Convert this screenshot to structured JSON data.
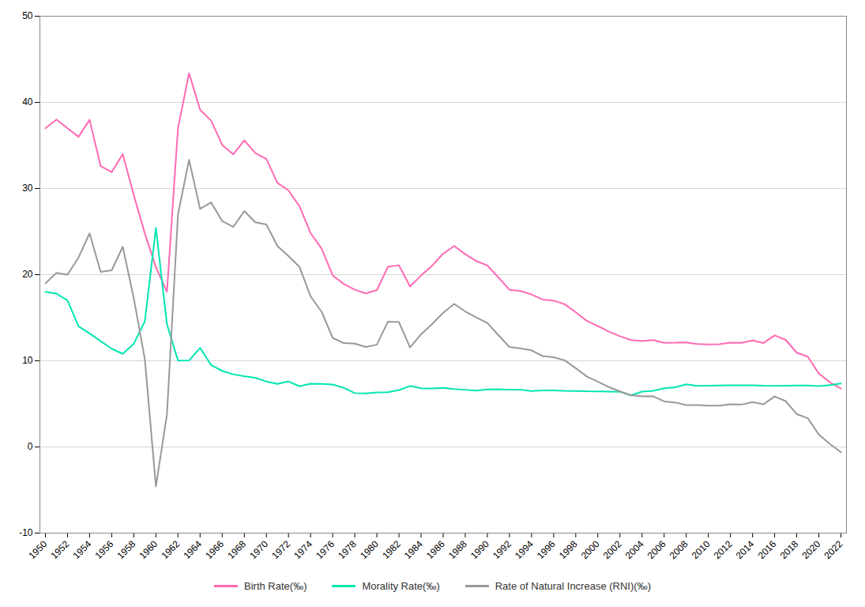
{
  "chart_data": {
    "type": "line",
    "x": [
      1950,
      1951,
      1952,
      1953,
      1954,
      1955,
      1956,
      1957,
      1958,
      1959,
      1960,
      1961,
      1962,
      1963,
      1964,
      1965,
      1966,
      1967,
      1968,
      1969,
      1970,
      1971,
      1972,
      1973,
      1974,
      1975,
      1976,
      1977,
      1978,
      1979,
      1980,
      1981,
      1982,
      1983,
      1984,
      1985,
      1986,
      1987,
      1988,
      1989,
      1990,
      1991,
      1992,
      1993,
      1994,
      1995,
      1996,
      1997,
      1998,
      1999,
      2000,
      2001,
      2002,
      2003,
      2004,
      2005,
      2006,
      2007,
      2008,
      2009,
      2010,
      2011,
      2012,
      2013,
      2014,
      2015,
      2016,
      2017,
      2018,
      2019,
      2020,
      2021,
      2022
    ],
    "series": [
      {
        "name": "Birth Rate(‰)",
        "color": "#ff69b4",
        "values": [
          37.0,
          38.0,
          37.0,
          36.0,
          37.97,
          32.6,
          31.9,
          34.0,
          29.22,
          24.78,
          20.86,
          18.02,
          37.01,
          43.37,
          39.14,
          37.88,
          35.05,
          33.96,
          35.59,
          34.11,
          33.43,
          30.65,
          29.77,
          27.93,
          24.82,
          23.01,
          19.91,
          18.93,
          18.25,
          17.82,
          18.21,
          20.91,
          21.09,
          18.62,
          19.9,
          21.04,
          22.43,
          23.33,
          22.37,
          21.58,
          21.06,
          19.68,
          18.24,
          18.09,
          17.7,
          17.12,
          16.98,
          16.57,
          15.64,
          14.64,
          14.03,
          13.38,
          12.86,
          12.41,
          12.29,
          12.4,
          12.09,
          12.1,
          12.14,
          11.95,
          11.9,
          11.93,
          12.1,
          12.08,
          12.37,
          12.07,
          12.95,
          12.43,
          10.94,
          10.48,
          8.52,
          7.52,
          6.77
        ]
      },
      {
        "name": "Morality Rate(‰)",
        "color": "#00e5b0",
        "values": [
          18.0,
          17.8,
          17.0,
          14.0,
          13.18,
          12.28,
          11.4,
          10.8,
          11.98,
          14.59,
          25.43,
          14.24,
          10.02,
          10.04,
          11.5,
          9.5,
          8.83,
          8.43,
          8.21,
          8.03,
          7.6,
          7.32,
          7.61,
          7.04,
          7.34,
          7.32,
          7.25,
          6.87,
          6.25,
          6.21,
          6.34,
          6.36,
          6.6,
          7.08,
          6.82,
          6.78,
          6.86,
          6.72,
          6.64,
          6.54,
          6.67,
          6.7,
          6.64,
          6.64,
          6.49,
          6.57,
          6.56,
          6.51,
          6.5,
          6.46,
          6.45,
          6.43,
          6.41,
          5.99,
          6.42,
          6.51,
          6.81,
          6.93,
          7.27,
          7.08,
          7.11,
          7.14,
          7.15,
          7.16,
          7.16,
          7.11,
          7.09,
          7.11,
          7.13,
          7.14,
          7.07,
          7.18,
          7.37
        ]
      },
      {
        "name": "Rate of Natural Increase (RNI)(‰)",
        "color": "#999999",
        "values": [
          19.0,
          20.2,
          20.0,
          22.0,
          24.79,
          20.32,
          20.5,
          23.23,
          17.24,
          10.19,
          -4.57,
          3.78,
          27.0,
          33.33,
          27.64,
          28.38,
          26.22,
          25.53,
          27.38,
          26.08,
          25.83,
          23.33,
          22.16,
          20.89,
          17.48,
          15.69,
          12.66,
          12.06,
          12.0,
          11.61,
          11.87,
          14.55,
          14.49,
          11.54,
          13.08,
          14.26,
          15.57,
          16.61,
          15.73,
          15.04,
          14.39,
          12.98,
          11.6,
          11.45,
          11.21,
          10.55,
          10.42,
          10.06,
          9.14,
          8.18,
          7.58,
          6.95,
          6.45,
          6.01,
          5.87,
          5.89,
          5.28,
          5.17,
          4.87,
          4.87,
          4.79,
          4.79,
          4.95,
          4.92,
          5.21,
          4.96,
          5.86,
          5.32,
          3.81,
          3.34,
          1.45,
          0.34,
          -0.6
        ]
      }
    ],
    "xlim": [
      1949.5,
      2022.5
    ],
    "xticks": [
      1950,
      1952,
      1954,
      1956,
      1958,
      1960,
      1962,
      1964,
      1966,
      1968,
      1970,
      1972,
      1974,
      1976,
      1978,
      1980,
      1982,
      1984,
      1986,
      1988,
      1990,
      1992,
      1994,
      1996,
      1998,
      2000,
      2002,
      2004,
      2006,
      2008,
      2010,
      2012,
      2014,
      2016,
      2018,
      2020,
      2022
    ],
    "ylim": [
      -10,
      50
    ],
    "yticks": [
      -10,
      0,
      10,
      20,
      30,
      40,
      50
    ],
    "grid": true,
    "legend": "bottom"
  }
}
